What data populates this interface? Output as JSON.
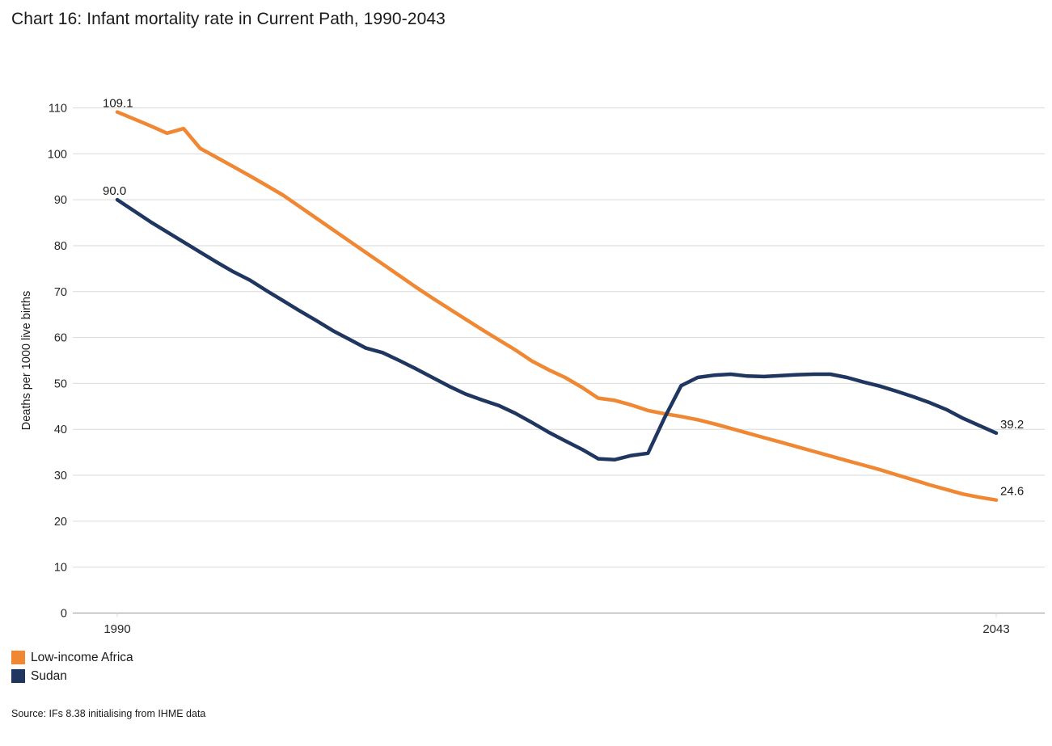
{
  "chart_data": {
    "type": "line",
    "title": "Chart 16: Infant mortality rate in Current Path, 1990-2043",
    "ylabel": "Deaths per 1000 live births",
    "x_range": [
      1990,
      2043
    ],
    "ylim": [
      0,
      110
    ],
    "y_ticks": [
      0,
      10,
      20,
      30,
      40,
      50,
      60,
      70,
      80,
      90,
      100,
      110
    ],
    "x_tick_labels": [
      {
        "year": 1990,
        "label": "1990"
      },
      {
        "year": 2043,
        "label": "2043"
      }
    ],
    "grid": "horizontal",
    "legend_position": "bottom-left",
    "gridline_color": "#D9D9D9",
    "axis_line_color": "#A6A6A6",
    "series": [
      {
        "name": "Low-income Africa",
        "color": "#EF8733",
        "x_start": 1990,
        "start_label": "109.1",
        "end_label": "24.6",
        "values": [
          109.1,
          107.6,
          106.1,
          104.5,
          105.5,
          101.2,
          99.2,
          97.2,
          95.2,
          93.1,
          91.0,
          88.5,
          86.0,
          83.5,
          81.0,
          78.5,
          76.0,
          73.5,
          71.0,
          68.6,
          66.3,
          64.0,
          61.7,
          59.5,
          57.3,
          54.9,
          53.0,
          51.3,
          49.2,
          46.8,
          46.3,
          45.3,
          44.1,
          43.4,
          42.8,
          42.1,
          41.2,
          40.2,
          39.2,
          38.2,
          37.2,
          36.2,
          35.2,
          34.2,
          33.2,
          32.2,
          31.2,
          30.1,
          29.0,
          27.9,
          26.9,
          25.9,
          25.2,
          24.6
        ]
      },
      {
        "name": "Sudan",
        "color": "#1F3660",
        "x_start": 1990,
        "start_label": "90.0",
        "end_label": "39.2",
        "values": [
          90.0,
          87.6,
          85.2,
          83.0,
          80.8,
          78.6,
          76.4,
          74.3,
          72.5,
          70.2,
          68.0,
          65.8,
          63.7,
          61.5,
          59.6,
          57.7,
          56.7,
          55.0,
          53.2,
          51.3,
          49.4,
          47.7,
          46.4,
          45.2,
          43.5,
          41.5,
          39.4,
          37.5,
          35.7,
          33.6,
          33.4,
          34.3,
          34.8,
          42.5,
          49.5,
          51.3,
          51.8,
          52.0,
          51.6,
          51.5,
          51.7,
          51.9,
          52.0,
          52.0,
          51.3,
          50.3,
          49.4,
          48.3,
          47.1,
          45.8,
          44.3,
          42.4,
          40.8,
          39.2
        ]
      }
    ]
  },
  "source": "Source: IFs 8.38 initialising from IHME data"
}
